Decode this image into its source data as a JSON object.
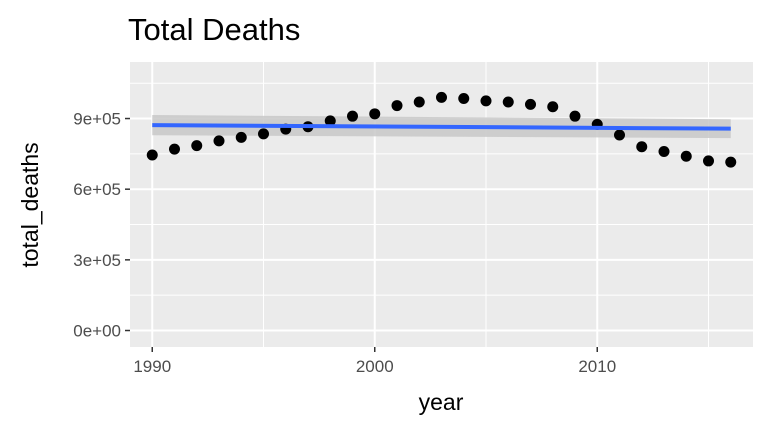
{
  "chart_data": {
    "type": "scatter",
    "title": "Total Deaths",
    "xlabel": "year",
    "ylabel": "total_deaths",
    "xlim": [
      1989,
      2017
    ],
    "ylim": [
      -70000,
      1140000
    ],
    "x_ticks": [
      1990,
      2000,
      2010
    ],
    "x_tick_labels": [
      "1990",
      "2000",
      "2010"
    ],
    "y_ticks": [
      0,
      300000,
      600000,
      900000
    ],
    "y_tick_labels": [
      "0e+00",
      "3e+05",
      "6e+05",
      "9e+05"
    ],
    "grid": true,
    "series": [
      {
        "x": [
          1990,
          1991,
          1992,
          1993,
          1994,
          1995,
          1996,
          1997,
          1998,
          1999,
          2000,
          2001,
          2002,
          2003,
          2004,
          2005,
          2006,
          2007,
          2008,
          2009,
          2010,
          2011,
          2012,
          2013,
          2014,
          2015,
          2016
        ],
        "y": [
          745000,
          770000,
          785000,
          805000,
          820000,
          835000,
          855000,
          865000,
          890000,
          910000,
          920000,
          955000,
          970000,
          990000,
          985000,
          975000,
          970000,
          960000,
          950000,
          910000,
          875000,
          830000,
          780000,
          760000,
          740000,
          720000,
          715000
        ],
        "color": "#000000"
      }
    ],
    "trend": {
      "method": "linear",
      "x": [
        1990,
        2016
      ],
      "y": [
        872000,
        857000
      ],
      "band_lower": [
        829000,
        817000
      ],
      "band_upper": [
        915000,
        897000
      ],
      "color": "#3366ff",
      "band_color": "#c8c8c8"
    }
  }
}
